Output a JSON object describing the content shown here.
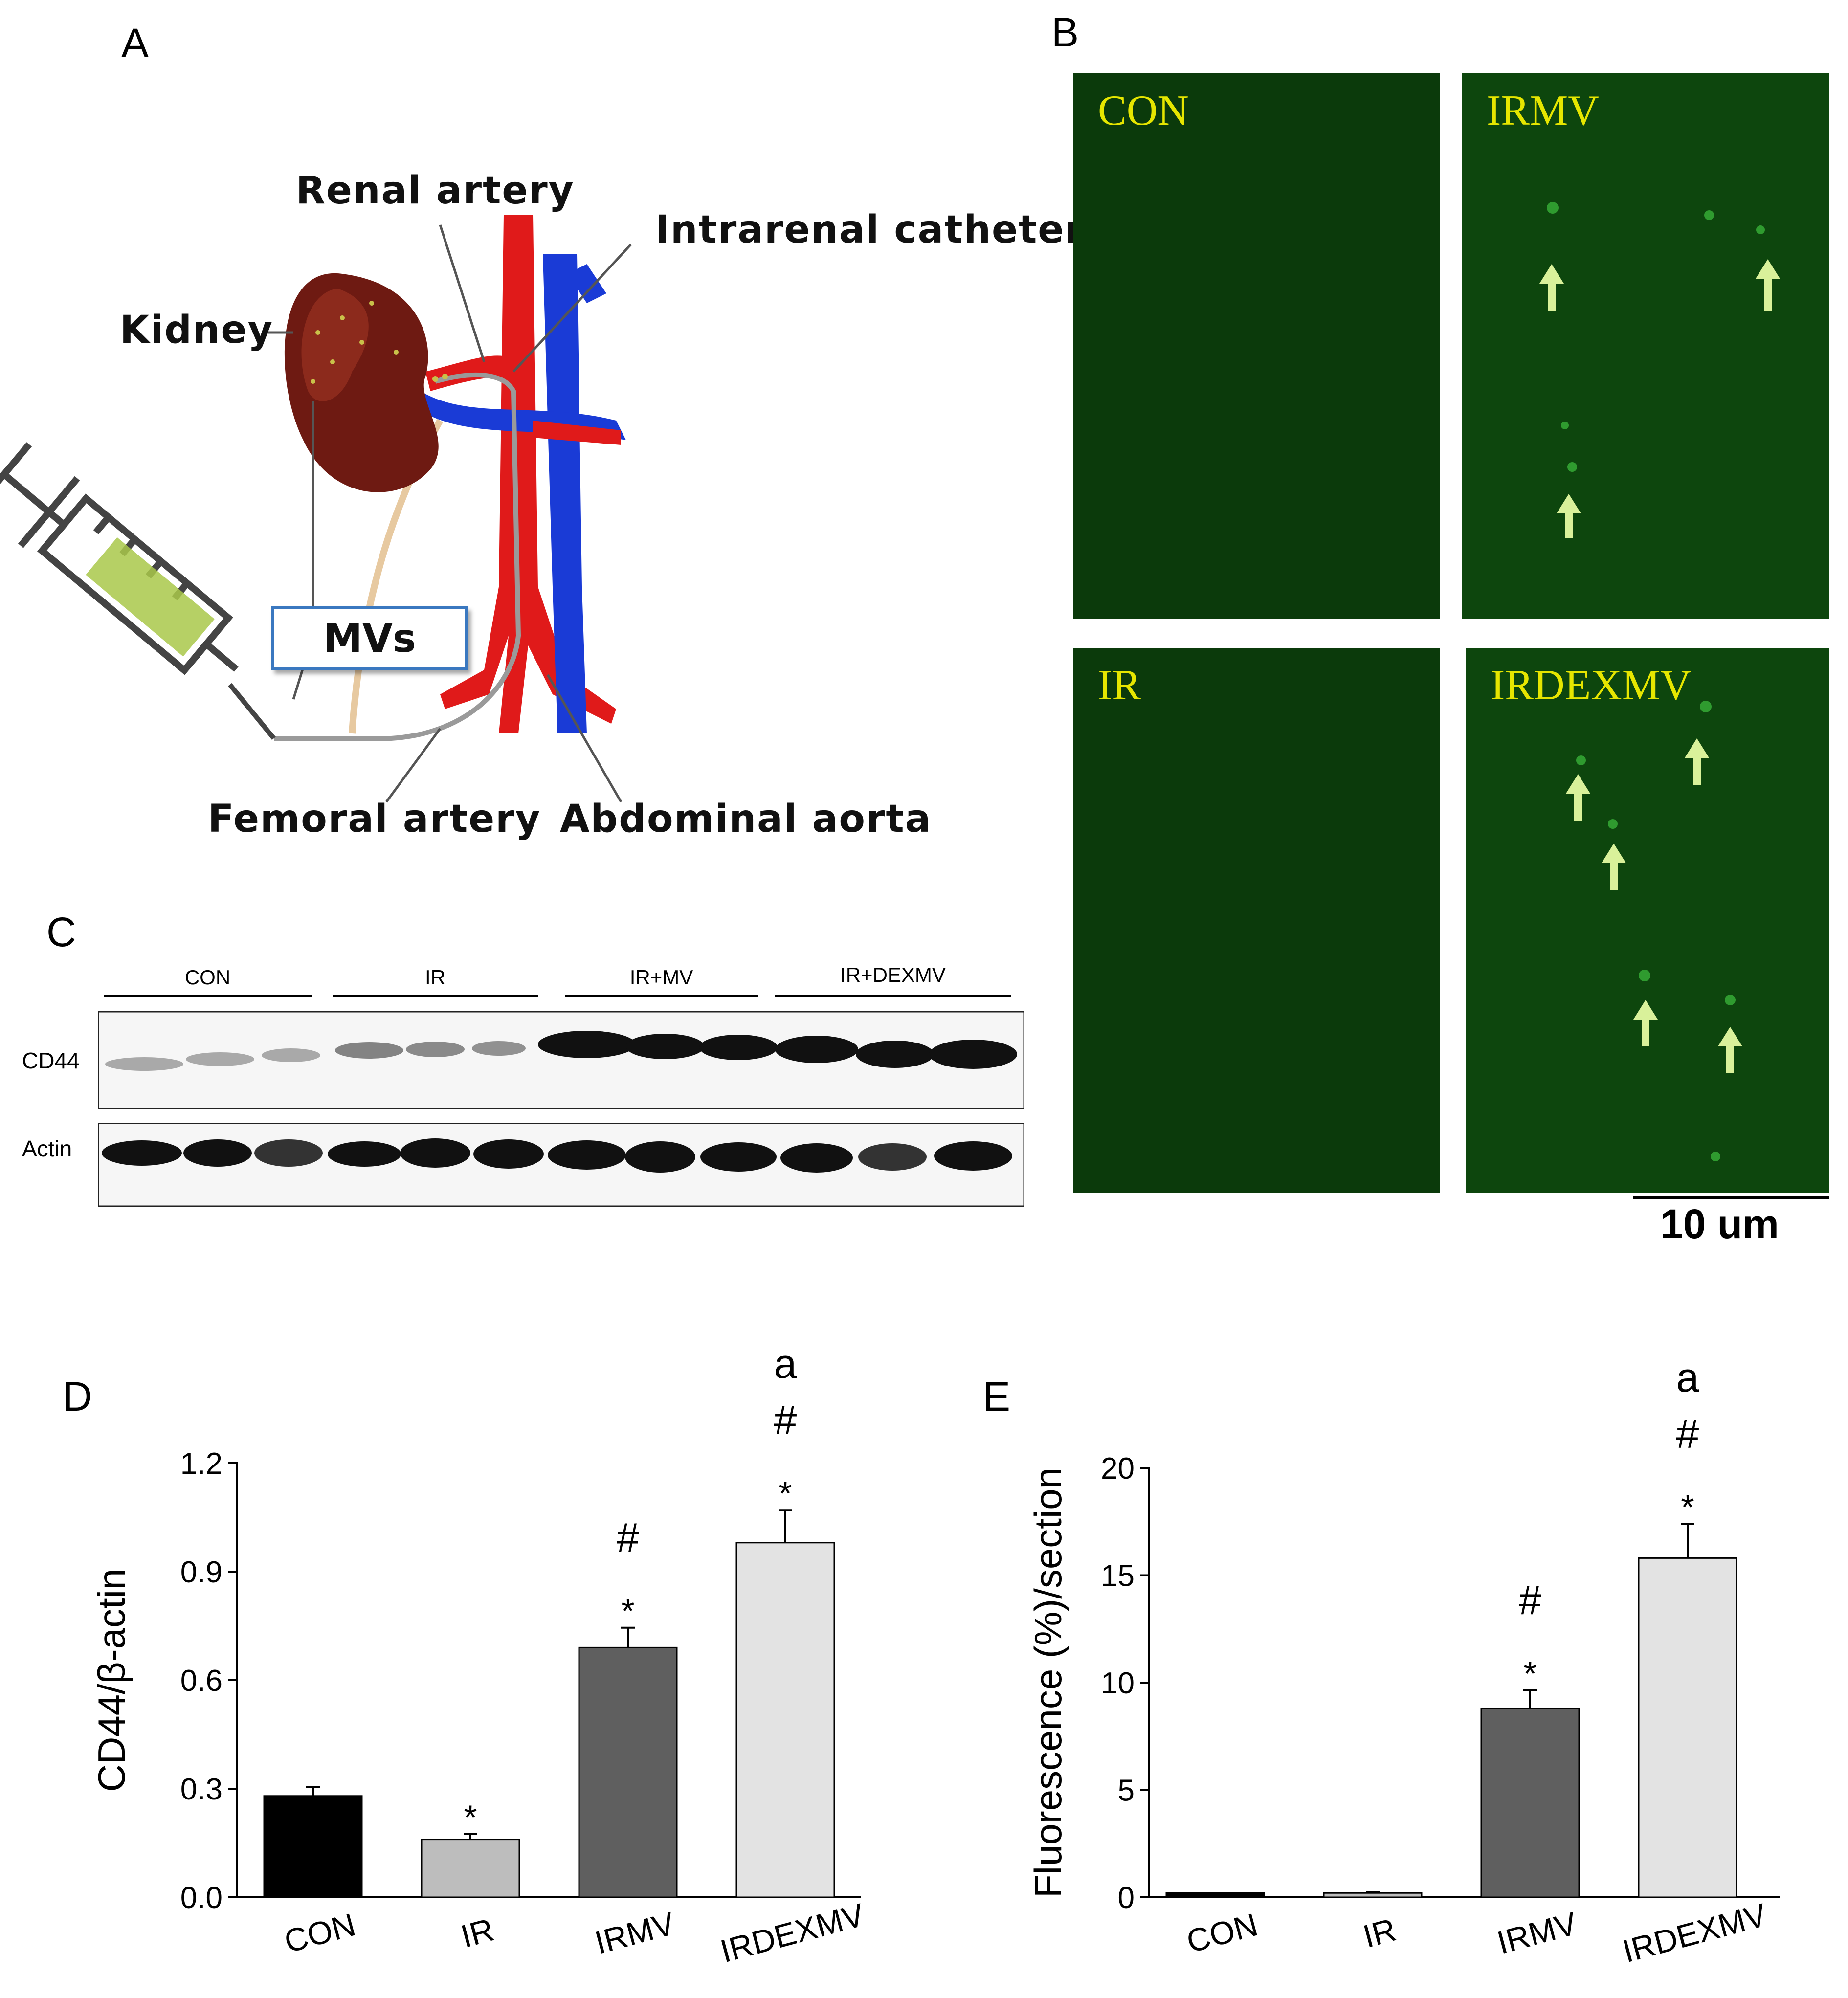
{
  "panel_letters": {
    "a": "A",
    "b": "B",
    "c": "C",
    "d": "D",
    "e": "E"
  },
  "panel_a": {
    "renal_artery": "Renal artery",
    "intrarenal_catheter": "Intrarenal catheter",
    "kidney": "Kidney",
    "mvs": "MVs",
    "femoral_artery": "Femoral artery",
    "abdominal_aorta": "Abdominal aorta"
  },
  "panel_b": {
    "images": [
      "CON",
      "IRMV",
      "IR",
      "IRDEXMV"
    ],
    "scale_bar": "10 um"
  },
  "panel_c": {
    "groups": [
      "CON",
      "IR",
      "IR+MV",
      "IR+DEXMV"
    ],
    "rows": [
      "CD44",
      "Actin"
    ]
  },
  "chart_data": [
    {
      "type": "bar",
      "panel": "D",
      "categories": [
        "CON",
        "IR",
        "IRMV",
        "IRDEXMV"
      ],
      "values": [
        0.28,
        0.16,
        0.69,
        0.98
      ],
      "errors": [
        0.025,
        0.015,
        0.055,
        0.09
      ],
      "colors": [
        "#000000",
        "#bdbdbd",
        "#5f5f5f",
        "#e3e3e3"
      ],
      "annotations": [
        [],
        [
          "*"
        ],
        [
          "*",
          "#"
        ],
        [
          "*",
          "#",
          "a"
        ]
      ],
      "ylabel": "CD44/β-actin",
      "ylim": [
        0,
        1.2
      ],
      "yticks": [
        "0.0",
        "0.3",
        "0.6",
        "0.9",
        "1.2"
      ]
    },
    {
      "type": "bar",
      "panel": "E",
      "categories": [
        "CON",
        "IR",
        "IRMV",
        "IRDEXMV"
      ],
      "values": [
        0.2,
        0.2,
        8.8,
        15.8
      ],
      "errors": [
        0,
        0.05,
        0.85,
        1.6
      ],
      "colors": [
        "#000000",
        "#bdbdbd",
        "#5f5f5f",
        "#e3e3e3"
      ],
      "annotations": [
        [],
        [],
        [
          "*",
          "#"
        ],
        [
          "*",
          "#",
          "a"
        ]
      ],
      "ylabel": "Fluorescence (%)/section",
      "ylim": [
        0,
        20
      ],
      "yticks": [
        "0",
        "5",
        "10",
        "15",
        "20"
      ]
    }
  ]
}
